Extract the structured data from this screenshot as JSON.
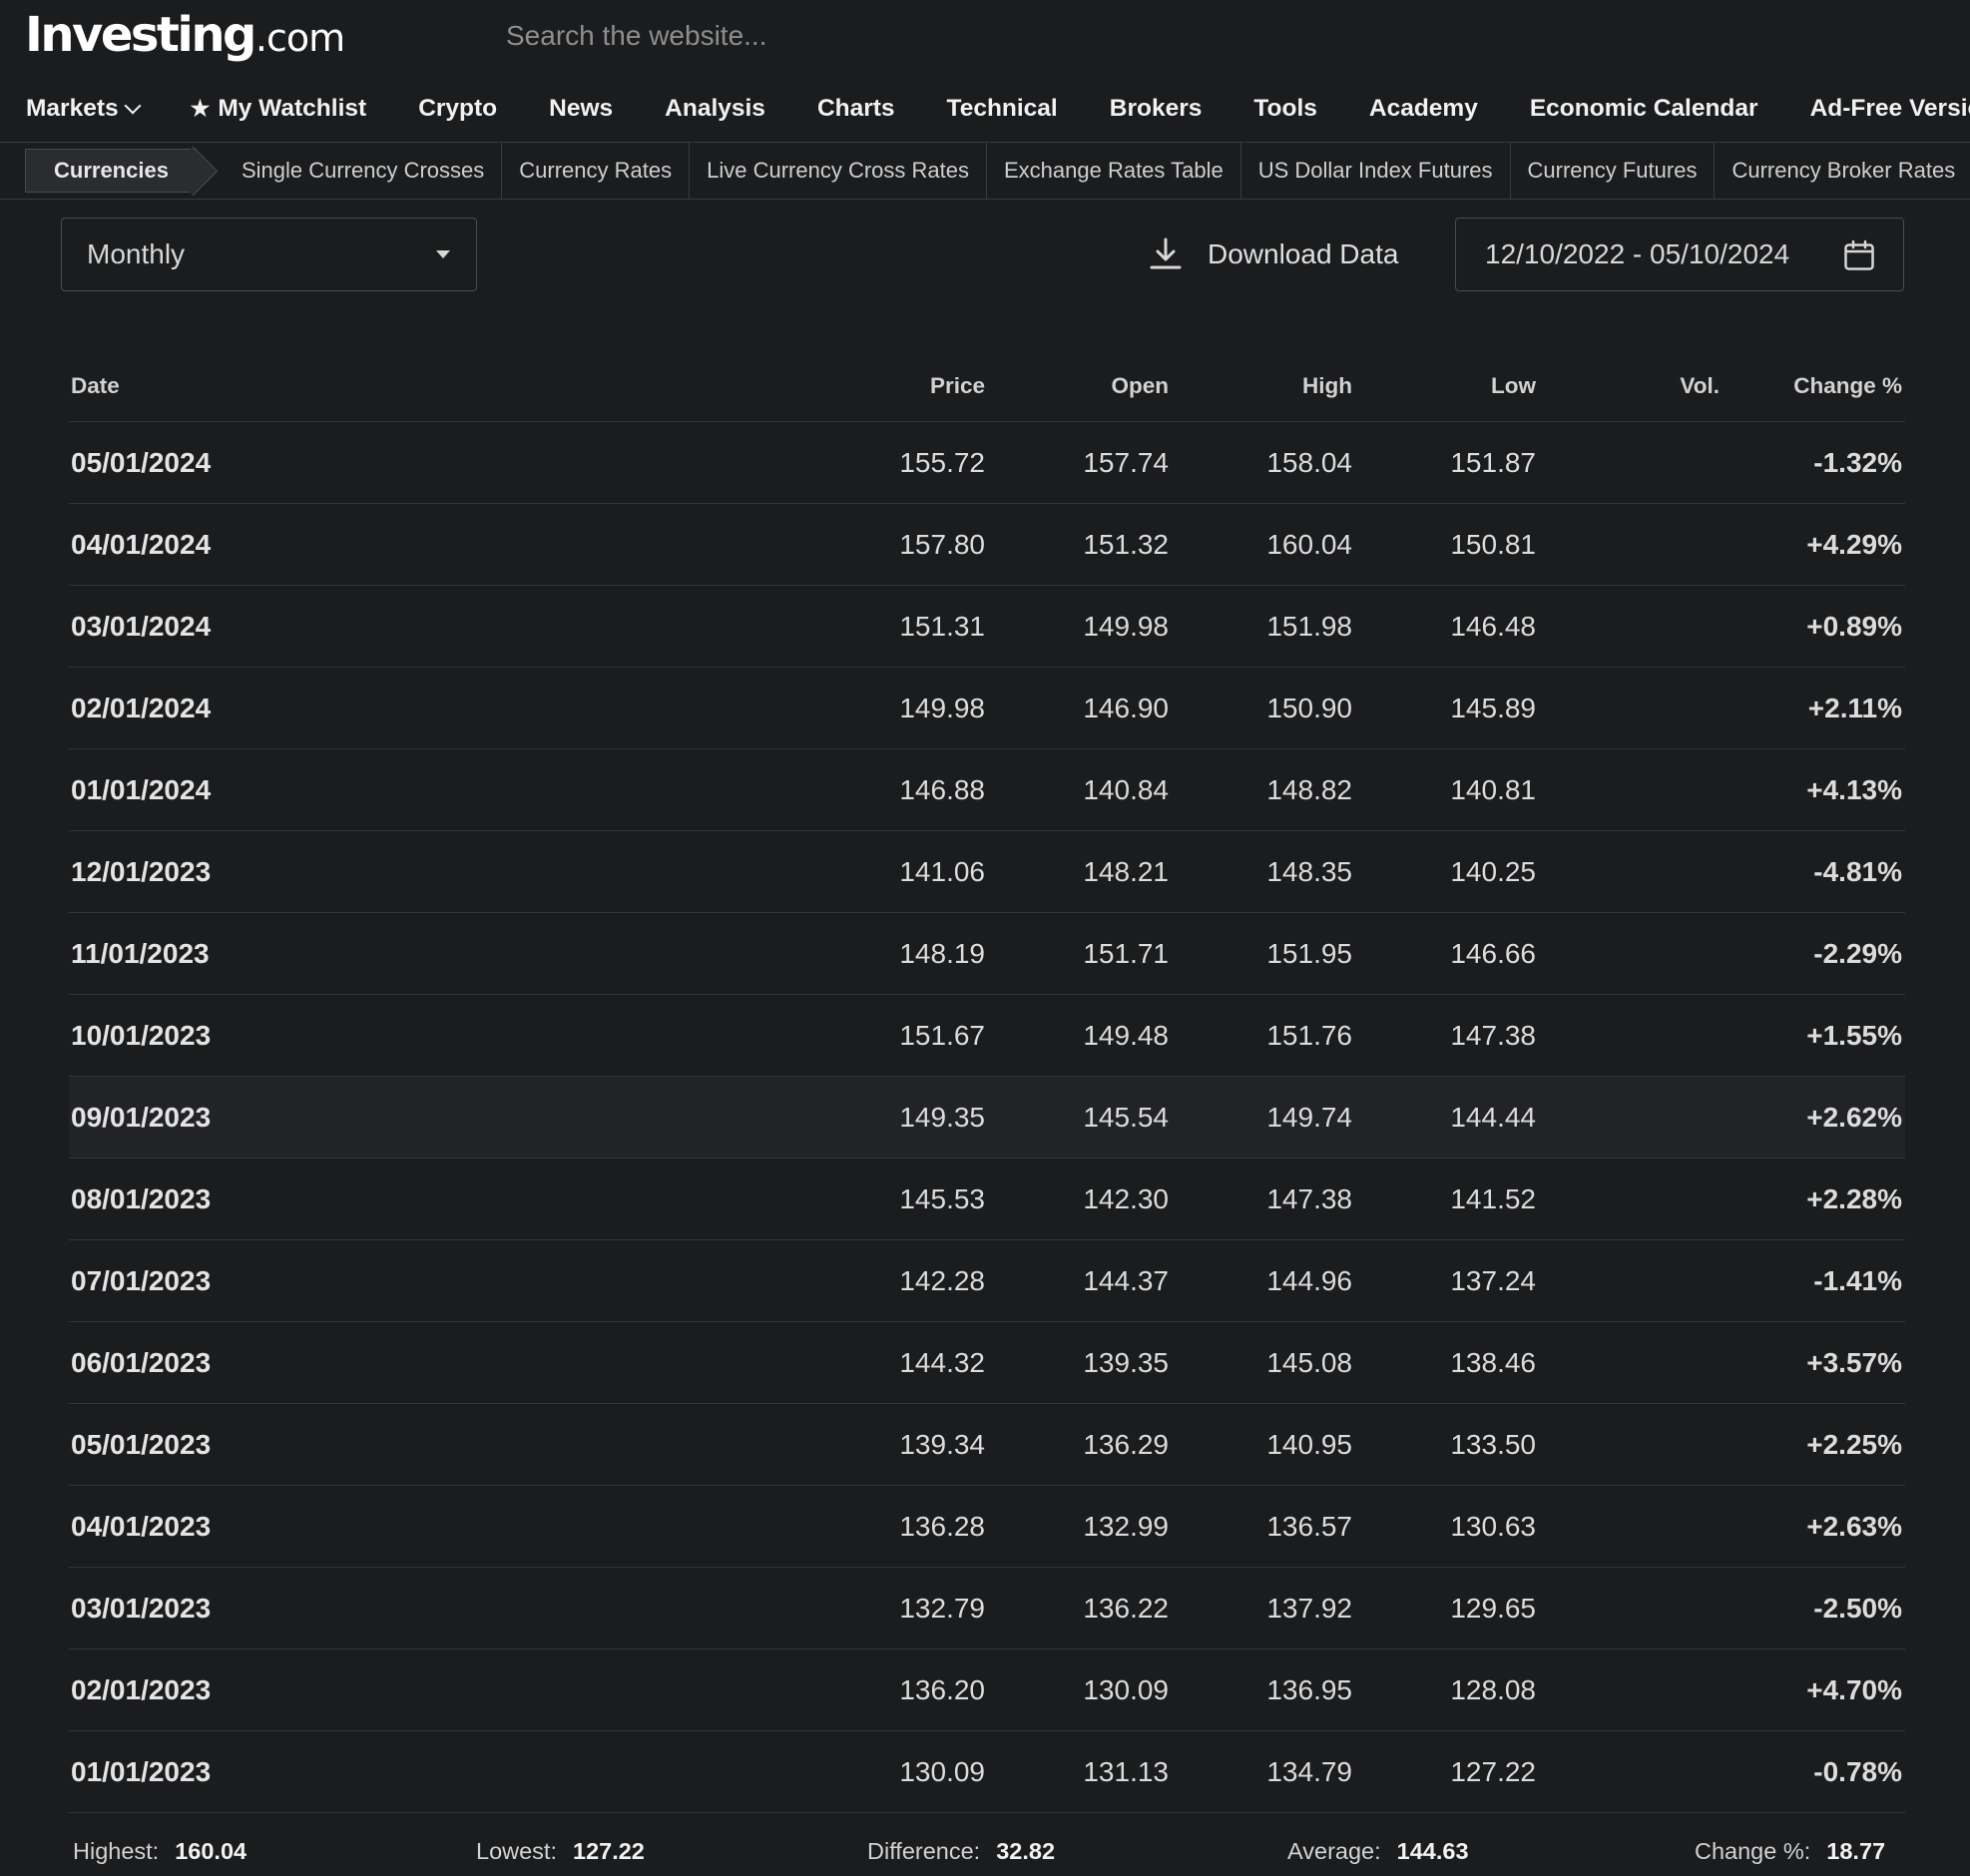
{
  "brand": {
    "name": "Investing",
    "suffix": ".com"
  },
  "search": {
    "placeholder": "Search the website..."
  },
  "nav": {
    "markets": "Markets",
    "watchlist": "My Watchlist",
    "items": [
      "Crypto",
      "News",
      "Analysis",
      "Charts",
      "Technical",
      "Brokers",
      "Tools",
      "Academy",
      "Economic Calendar",
      "Ad-Free Version"
    ]
  },
  "subnav": {
    "active": "Currencies",
    "items": [
      "Single Currency Crosses",
      "Currency Rates",
      "Live Currency Cross Rates",
      "Exchange Rates Table",
      "US Dollar Index Futures",
      "Currency Futures",
      "Currency Broker Rates"
    ]
  },
  "controls": {
    "interval": "Monthly",
    "download": "Download Data",
    "date_range": "12/10/2022 - 05/10/2024"
  },
  "table": {
    "headers": {
      "date": "Date",
      "price": "Price",
      "open": "Open",
      "high": "High",
      "low": "Low",
      "vol": "Vol.",
      "change": "Change %"
    },
    "rows": [
      {
        "date": "05/01/2024",
        "price": "155.72",
        "open": "157.74",
        "high": "158.04",
        "low": "151.87",
        "vol": "",
        "change": "-1.32%",
        "dir": "down"
      },
      {
        "date": "04/01/2024",
        "price": "157.80",
        "open": "151.32",
        "high": "160.04",
        "low": "150.81",
        "vol": "",
        "change": "+4.29%",
        "dir": "up"
      },
      {
        "date": "03/01/2024",
        "price": "151.31",
        "open": "149.98",
        "high": "151.98",
        "low": "146.48",
        "vol": "",
        "change": "+0.89%",
        "dir": "up"
      },
      {
        "date": "02/01/2024",
        "price": "149.98",
        "open": "146.90",
        "high": "150.90",
        "low": "145.89",
        "vol": "",
        "change": "+2.11%",
        "dir": "up"
      },
      {
        "date": "01/01/2024",
        "price": "146.88",
        "open": "140.84",
        "high": "148.82",
        "low": "140.81",
        "vol": "",
        "change": "+4.13%",
        "dir": "up"
      },
      {
        "date": "12/01/2023",
        "price": "141.06",
        "open": "148.21",
        "high": "148.35",
        "low": "140.25",
        "vol": "",
        "change": "-4.81%",
        "dir": "down"
      },
      {
        "date": "11/01/2023",
        "price": "148.19",
        "open": "151.71",
        "high": "151.95",
        "low": "146.66",
        "vol": "",
        "change": "-2.29%",
        "dir": "down"
      },
      {
        "date": "10/01/2023",
        "price": "151.67",
        "open": "149.48",
        "high": "151.76",
        "low": "147.38",
        "vol": "",
        "change": "+1.55%",
        "dir": "up"
      },
      {
        "date": "09/01/2023",
        "price": "149.35",
        "open": "145.54",
        "high": "149.74",
        "low": "144.44",
        "vol": "",
        "change": "+2.62%",
        "dir": "up",
        "highlighted": true
      },
      {
        "date": "08/01/2023",
        "price": "145.53",
        "open": "142.30",
        "high": "147.38",
        "low": "141.52",
        "vol": "",
        "change": "+2.28%",
        "dir": "up"
      },
      {
        "date": "07/01/2023",
        "price": "142.28",
        "open": "144.37",
        "high": "144.96",
        "low": "137.24",
        "vol": "",
        "change": "-1.41%",
        "dir": "down"
      },
      {
        "date": "06/01/2023",
        "price": "144.32",
        "open": "139.35",
        "high": "145.08",
        "low": "138.46",
        "vol": "",
        "change": "+3.57%",
        "dir": "up"
      },
      {
        "date": "05/01/2023",
        "price": "139.34",
        "open": "136.29",
        "high": "140.95",
        "low": "133.50",
        "vol": "",
        "change": "+2.25%",
        "dir": "up"
      },
      {
        "date": "04/01/2023",
        "price": "136.28",
        "open": "132.99",
        "high": "136.57",
        "low": "130.63",
        "vol": "",
        "change": "+2.63%",
        "dir": "up"
      },
      {
        "date": "03/01/2023",
        "price": "132.79",
        "open": "136.22",
        "high": "137.92",
        "low": "129.65",
        "vol": "",
        "change": "-2.50%",
        "dir": "down"
      },
      {
        "date": "02/01/2023",
        "price": "136.20",
        "open": "130.09",
        "high": "136.95",
        "low": "128.08",
        "vol": "",
        "change": "+4.70%",
        "dir": "up"
      },
      {
        "date": "01/01/2023",
        "price": "130.09",
        "open": "131.13",
        "high": "134.79",
        "low": "127.22",
        "vol": "",
        "change": "-0.78%",
        "dir": "down"
      }
    ]
  },
  "summary": [
    {
      "label": "Highest:",
      "value": "160.04"
    },
    {
      "label": "Lowest:",
      "value": "127.22"
    },
    {
      "label": "Difference:",
      "value": "32.82"
    },
    {
      "label": "Average:",
      "value": "144.63"
    },
    {
      "label": "Change %:",
      "value": "18.77"
    }
  ],
  "colors": {
    "up": "#3fd08a",
    "down": "#f0483e",
    "background": "#1b1c1e"
  },
  "icons": {
    "download": "download-icon",
    "calendar": "calendar-icon",
    "dropdown": "caret-down-icon",
    "star": "star-icon",
    "chevron": "chevron-down-icon"
  }
}
